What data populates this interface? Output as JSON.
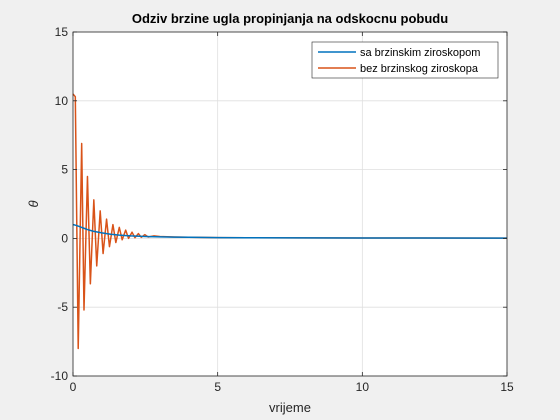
{
  "chart_data": {
    "type": "line",
    "title": "Odziv brzine ugla propinjanja na odskocnu pobudu",
    "xlabel": "vrijeme",
    "ylabel": "θ",
    "xlim": [
      0,
      15
    ],
    "ylim": [
      -10,
      15
    ],
    "xticks": [
      "0",
      "5",
      "10",
      "15"
    ],
    "yticks": [
      "-10",
      "-5",
      "0",
      "5",
      "10",
      "15"
    ],
    "grid": true,
    "legend_position": "top-right",
    "series": [
      {
        "name": "sa brzinskim ziroskopom",
        "color": "#0072BD",
        "x": [
          0,
          0.05,
          0.1,
          0.2,
          0.3,
          0.4,
          0.5,
          0.7,
          1.0,
          1.3,
          1.6,
          2.0,
          2.5,
          3.0,
          3.5,
          4.0,
          5.0,
          6.0,
          8.0,
          10.0,
          12.0,
          15.0
        ],
        "y": [
          1.0,
          0.98,
          0.95,
          0.88,
          0.8,
          0.72,
          0.64,
          0.52,
          0.4,
          0.3,
          0.24,
          0.18,
          0.14,
          0.11,
          0.09,
          0.08,
          0.06,
          0.05,
          0.04,
          0.03,
          0.03,
          0.02
        ]
      },
      {
        "name": "bez brzinskog ziroskopa",
        "color": "#D95319",
        "x": [
          0,
          0.08,
          0.18,
          0.3,
          0.38,
          0.5,
          0.6,
          0.72,
          0.82,
          0.94,
          1.04,
          1.16,
          1.26,
          1.38,
          1.48,
          1.6,
          1.7,
          1.82,
          1.92,
          2.04,
          2.14,
          2.26,
          2.36,
          2.48,
          2.6,
          2.8,
          3.0,
          3.5,
          4.0,
          5.0,
          6.0,
          8.0,
          10.0,
          12.0,
          15.0
        ],
        "y": [
          10.5,
          10.3,
          -8.0,
          6.9,
          -5.2,
          4.5,
          -3.3,
          2.8,
          -2.0,
          2.0,
          -1.1,
          1.4,
          -0.6,
          1.0,
          -0.3,
          0.8,
          -0.1,
          0.6,
          0.0,
          0.45,
          0.05,
          0.35,
          0.08,
          0.27,
          0.1,
          0.18,
          0.14,
          0.1,
          0.08,
          0.06,
          0.05,
          0.04,
          0.03,
          0.03,
          0.02
        ]
      }
    ]
  }
}
